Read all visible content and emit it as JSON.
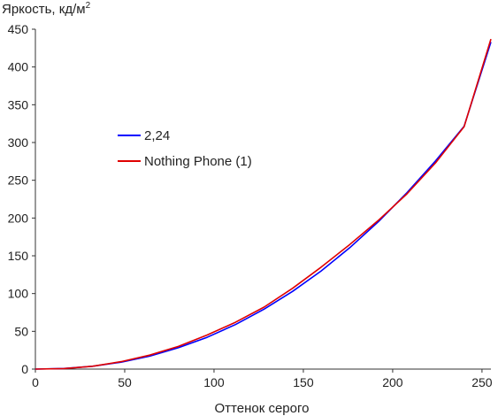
{
  "chart_data": {
    "type": "line",
    "title": "",
    "ylabel": "Яркость, кд/м",
    "ylabel_superscript": "2",
    "xlabel": "Оттенок серого",
    "xlim": [
      0,
      255
    ],
    "ylim": [
      0,
      450
    ],
    "xticks": [
      0,
      50,
      100,
      150,
      200,
      250
    ],
    "yticks": [
      0,
      50,
      100,
      150,
      200,
      250,
      300,
      350,
      400,
      450
    ],
    "grid": false,
    "legend_position": "center-left",
    "series": [
      {
        "name": "2,24",
        "color": "#0000ff",
        "x": [
          0,
          16,
          32,
          48,
          64,
          80,
          96,
          112,
          128,
          144,
          160,
          176,
          192,
          208,
          224,
          240,
          255
        ],
        "y": [
          0,
          0.8,
          3.7,
          9.1,
          17.2,
          28.2,
          42.0,
          59.0,
          79.3,
          102.9,
          130.0,
          160.8,
          195.2,
          233.5,
          275.6,
          321.6,
          433.0
        ]
      },
      {
        "name": "Nothing Phone (1)",
        "color": "#e00000",
        "x": [
          0,
          16,
          32,
          48,
          64,
          80,
          96,
          112,
          128,
          144,
          160,
          176,
          192,
          208,
          224,
          240,
          255
        ],
        "y": [
          0,
          0.7,
          3.8,
          9.8,
          18.5,
          30.0,
          45.0,
          62.0,
          82.0,
          107.0,
          135.0,
          165.0,
          197.0,
          232.0,
          273.0,
          321.0,
          437.0
        ]
      }
    ]
  }
}
